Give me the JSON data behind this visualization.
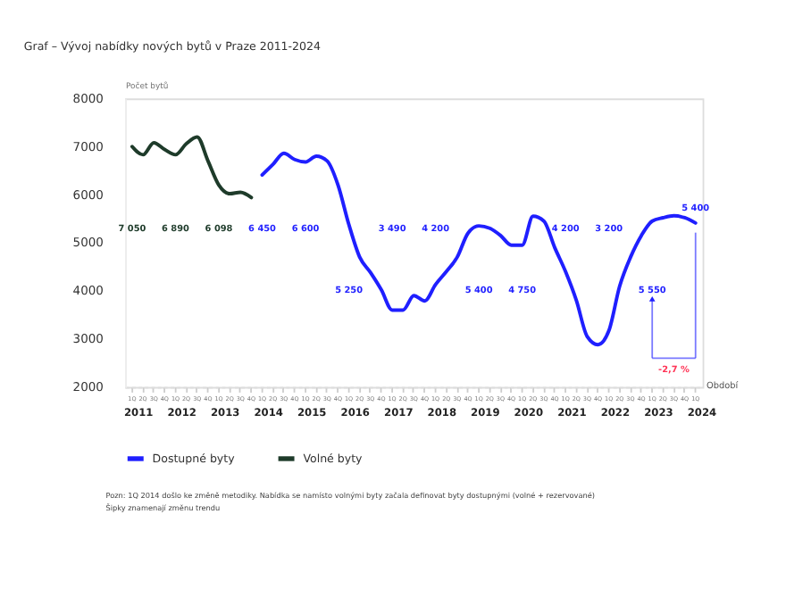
{
  "chart_data": {
    "type": "line",
    "title": "Graf – Vývoj nabídky nových bytů v Praze  2011-2024",
    "ylabel": "Počet bytů",
    "xlabel": "Období",
    "ylim": [
      2000,
      8000
    ],
    "yticks": [
      2000,
      3000,
      4000,
      5000,
      6000,
      7000,
      8000
    ],
    "categories": [
      "1Q",
      "2Q",
      "3Q",
      "4Q",
      "1Q",
      "2Q",
      "3Q",
      "4Q",
      "1Q",
      "2Q",
      "3Q",
      "4Q",
      "1Q",
      "2Q",
      "3Q",
      "4Q",
      "1Q",
      "2Q",
      "3Q",
      "4Q",
      "1Q",
      "2Q",
      "3Q",
      "4Q",
      "1Q",
      "2Q",
      "3Q",
      "4Q",
      "1Q",
      "2Q",
      "3Q",
      "4Q",
      "1Q",
      "2Q",
      "3Q",
      "4Q",
      "1Q",
      "2Q",
      "3Q",
      "4Q",
      "1Q",
      "2Q",
      "3Q",
      "4Q",
      "1Q",
      "2Q",
      "3Q",
      "4Q",
      "1Q",
      "2Q",
      "3Q",
      "4Q",
      "1Q"
    ],
    "series": [
      {
        "name": "Dostupné byty",
        "color": "#1f1fff",
        "values": [
          null,
          null,
          null,
          null,
          null,
          null,
          null,
          null,
          null,
          null,
          null,
          null,
          6410,
          6630,
          6860,
          6730,
          6680,
          6800,
          6700,
          6200,
          5380,
          4700,
          4380,
          4020,
          3600,
          3600,
          3900,
          3790,
          4130,
          4400,
          4700,
          5200,
          5350,
          5300,
          5150,
          4950,
          4950,
          5550,
          5450,
          4900,
          4400,
          3800,
          3050,
          2880,
          3170,
          4100,
          4700,
          5150,
          5450,
          5520,
          5560,
          5520,
          5410
        ]
      },
      {
        "name": "Volné byty",
        "color": "#1e3b2a",
        "values": [
          7000,
          6830,
          7080,
          6940,
          6830,
          7060,
          7200,
          6700,
          6200,
          6020,
          6050,
          5940,
          null,
          null,
          null,
          null,
          null,
          null,
          null,
          null,
          null,
          null,
          null,
          null,
          null,
          null,
          null,
          null,
          null,
          null,
          null,
          null,
          null,
          null,
          null,
          null,
          null,
          null,
          null,
          null,
          null,
          null,
          null,
          null,
          null,
          null,
          null,
          null,
          null,
          null,
          null,
          null,
          null
        ]
      }
    ],
    "legend": "bottom",
    "annotations": [
      "2011",
      "2012",
      "2013",
      "2014",
      "2015",
      "2016",
      "2017",
      "2018",
      "2019",
      "2020",
      "2021",
      "2022",
      "2023",
      "2024",
      "7 050",
      "6 890",
      "6 098",
      "6 450",
      "6 600",
      "5 250",
      "3 490",
      "4 200",
      "5 400",
      "4 750",
      "4 200",
      "3 200",
      "5 550",
      "5 400",
      "-2,7 %",
      "Pozn:   1Q 2014 došlo ke změně metodiky. Nabídka se namísto volnými byty začala definovat byty dostupnými (volné + rezervované)",
      "Šipky znamenají změnu trendu"
    ]
  }
}
